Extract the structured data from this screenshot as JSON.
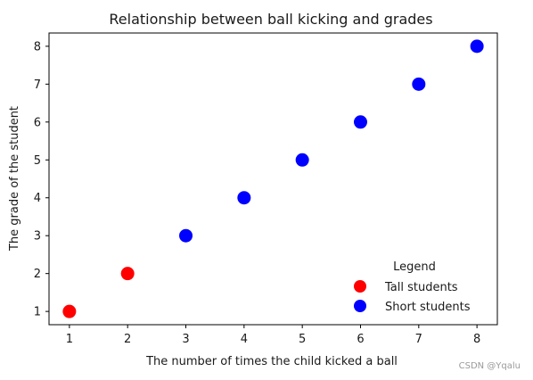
{
  "chart_data": {
    "type": "scatter",
    "title": "Relationship between ball kicking and grades",
    "xlabel": "The number of times the child kicked a ball",
    "ylabel": "The grade of the student",
    "xlim": [
      0.65,
      8.35
    ],
    "ylim": [
      0.65,
      8.35
    ],
    "xticks": [
      1,
      2,
      3,
      4,
      5,
      6,
      7,
      8
    ],
    "yticks": [
      1,
      2,
      3,
      4,
      5,
      6,
      7,
      8
    ],
    "grid": false,
    "legend": {
      "title": "Legend",
      "placement": "lower-right"
    },
    "series": [
      {
        "name": "Tall students",
        "color": "#ff0000",
        "x": [
          1,
          2
        ],
        "y": [
          1,
          2
        ]
      },
      {
        "name": "Short students",
        "color": "#0000ff",
        "x": [
          3,
          4,
          5,
          6,
          7,
          8
        ],
        "y": [
          3,
          4,
          5,
          6,
          7,
          8
        ]
      }
    ]
  },
  "watermark": "CSDN @Yqalu"
}
